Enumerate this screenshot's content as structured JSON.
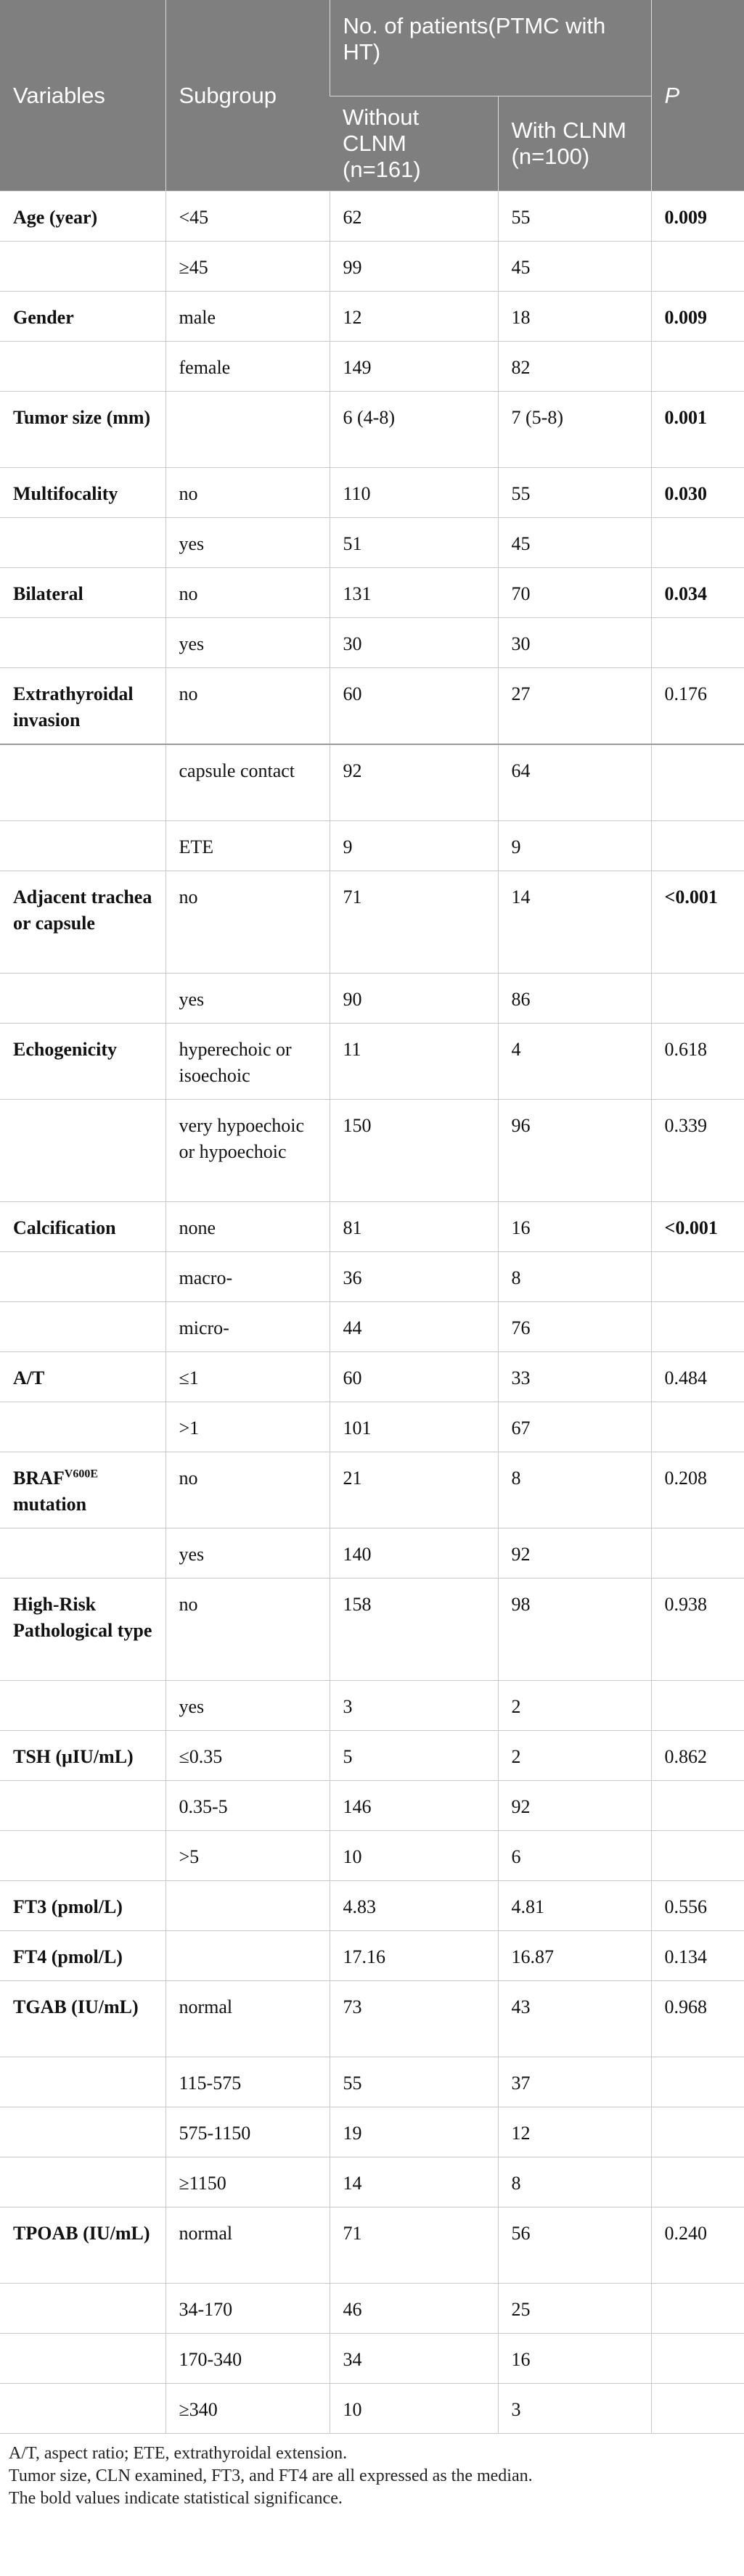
{
  "header": {
    "variables": "Variables",
    "subgroup": "Subgroup",
    "group": "No. of patients(PTMC with HT)",
    "without": "Without CLNM (n=161)",
    "with": "With CLNM (n=100)",
    "p": "P"
  },
  "rows": [
    {
      "variable": "Age (year)",
      "subgroup": "<45",
      "without": "62",
      "with": "55",
      "p": "0.009",
      "sig": true
    },
    {
      "variable": "",
      "subgroup": "≥45",
      "without": "99",
      "with": "45",
      "p": ""
    },
    {
      "variable": "Gender",
      "subgroup": "male",
      "without": "12",
      "with": "18",
      "p": "0.009",
      "sig": true
    },
    {
      "variable": "",
      "subgroup": "female",
      "without": "149",
      "with": "82",
      "p": ""
    },
    {
      "variable": "Tumor size (mm)",
      "subgroup": "",
      "without": "6 (4-8)",
      "with": "7 (5-8)",
      "p": "0.001",
      "sig": true,
      "size": "tall"
    },
    {
      "variable": "Multifocality",
      "subgroup": "no",
      "without": "110",
      "with": "55",
      "p": "0.030",
      "sig": true
    },
    {
      "variable": "",
      "subgroup": "yes",
      "without": "51",
      "with": "45",
      "p": ""
    },
    {
      "variable": "Bilateral",
      "subgroup": "no",
      "without": "131",
      "with": "70",
      "p": "0.034",
      "sig": true
    },
    {
      "variable": "",
      "subgroup": "yes",
      "without": "30",
      "with": "30",
      "p": ""
    },
    {
      "variable": "Extrathyroidal invasion",
      "subgroup": "no",
      "without": "60",
      "with": "27",
      "p": "0.176",
      "size": "tall"
    },
    {
      "variable": "",
      "subgroup": "capsule contact",
      "without": "92",
      "with": "64",
      "p": "",
      "size": "tall",
      "sep": true
    },
    {
      "variable": "",
      "subgroup": "ETE",
      "without": "9",
      "with": "9",
      "p": ""
    },
    {
      "variable": "Adjacent trachea or capsule",
      "subgroup": "no",
      "without": "71",
      "with": "14",
      "p": "<0.001",
      "sig": true,
      "size": "taller"
    },
    {
      "variable": "",
      "subgroup": "yes",
      "without": "90",
      "with": "86",
      "p": ""
    },
    {
      "variable": "Echogenicity",
      "subgroup": "hyperechoic or isoechoic",
      "without": "11",
      "with": "4",
      "p": "0.618",
      "size": "tall"
    },
    {
      "variable": "",
      "subgroup": "very hypoechoic or hypoechoic",
      "without": "150",
      "with": "96",
      "p": "0.339",
      "size": "taller"
    },
    {
      "variable": "Calcification",
      "subgroup": "none",
      "without": "81",
      "with": "16",
      "p": "<0.001",
      "sig": true
    },
    {
      "variable": "",
      "subgroup": "macro-",
      "without": "36",
      "with": "8",
      "p": ""
    },
    {
      "variable": "",
      "subgroup": "micro-",
      "without": "44",
      "with": "76",
      "p": ""
    },
    {
      "variable": "A/T",
      "subgroup": "≤1",
      "without": "60",
      "with": "33",
      "p": "0.484"
    },
    {
      "variable": "",
      "subgroup": ">1",
      "without": "101",
      "with": "67",
      "p": ""
    },
    {
      "variable": "BRAF",
      "variable_sup": "V600E",
      "variable_tail": "mutation",
      "subgroup": "no",
      "without": "21",
      "with": "8",
      "p": "0.208",
      "size": "tall"
    },
    {
      "variable": "",
      "subgroup": "yes",
      "without": "140",
      "with": "92",
      "p": ""
    },
    {
      "variable": "High-Risk Pathological type",
      "subgroup": "no",
      "without": "158",
      "with": "98",
      "p": "0.938",
      "size": "taller"
    },
    {
      "variable": "",
      "subgroup": "yes",
      "without": "3",
      "with": "2",
      "p": ""
    },
    {
      "variable": "TSH (μIU/mL)",
      "subgroup": "≤0.35",
      "without": "5",
      "with": "2",
      "p": "0.862"
    },
    {
      "variable": "",
      "subgroup": "0.35-5",
      "without": "146",
      "with": "92",
      "p": ""
    },
    {
      "variable": "",
      "subgroup": ">5",
      "without": "10",
      "with": "6",
      "p": ""
    },
    {
      "variable": "FT3 (pmol/L)",
      "subgroup": "",
      "without": "4.83",
      "with": "4.81",
      "p": "0.556"
    },
    {
      "variable": "FT4 (pmol/L)",
      "subgroup": "",
      "without": "17.16",
      "with": "16.87",
      "p": "0.134"
    },
    {
      "variable": "TGAB (IU/mL)",
      "subgroup": "normal",
      "without": "73",
      "with": "43",
      "p": "0.968",
      "size": "tall"
    },
    {
      "variable": "",
      "subgroup": "115-575",
      "without": "55",
      "with": "37",
      "p": ""
    },
    {
      "variable": "",
      "subgroup": "575-1150",
      "without": "19",
      "with": "12",
      "p": ""
    },
    {
      "variable": "",
      "subgroup": "≥1150",
      "without": "14",
      "with": "8",
      "p": ""
    },
    {
      "variable": "TPOAB (IU/mL)",
      "subgroup": "normal",
      "without": "71",
      "with": "56",
      "p": "0.240",
      "size": "tall"
    },
    {
      "variable": "",
      "subgroup": "34-170",
      "without": "46",
      "with": "25",
      "p": ""
    },
    {
      "variable": "",
      "subgroup": "170-340",
      "without": "34",
      "with": "16",
      "p": ""
    },
    {
      "variable": "",
      "subgroup": "≥340",
      "without": "10",
      "with": "3",
      "p": ""
    }
  ],
  "notes": [
    "A/T, aspect ratio; ETE, extrathyroidal extension.",
    "Tumor size, CLN examined, FT3, and FT4 are all expressed as the median.",
    "The bold values indicate statistical significance."
  ]
}
